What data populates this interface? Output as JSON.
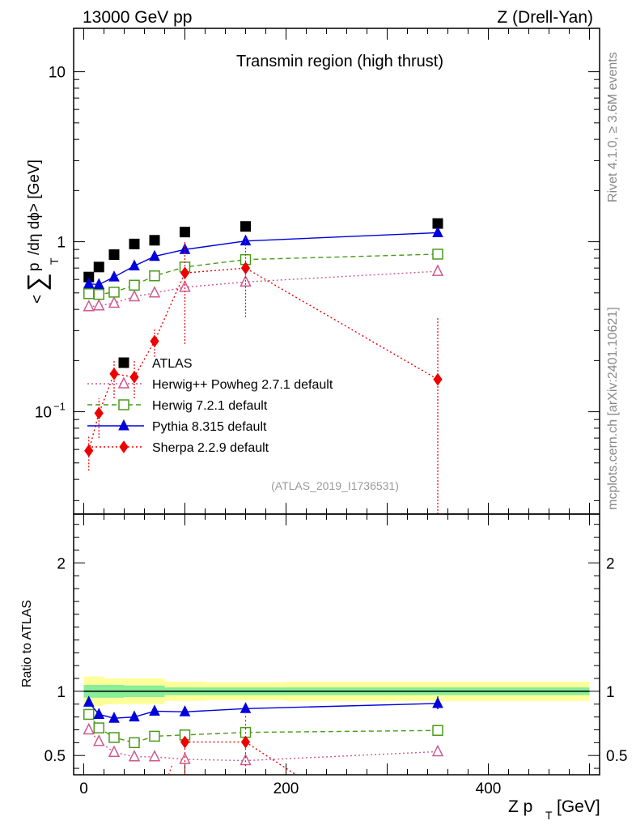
{
  "header": {
    "left": "13000 GeV pp",
    "right": "Z (Drell-Yan)",
    "title": "Transmin region (high thrust)",
    "side_rivet": "Rivet 4.1.0, ≥ 3.6M events",
    "side_mcplots": "mcplots.cern.ch [arXiv:2401.10621]",
    "analysis": "(ATLAS_2019_I1736531)"
  },
  "chart_data": [
    {
      "type": "scatter",
      "panel": "main",
      "ylabel": {
        "lt": "<",
        "sum": "∑",
        "p": "p",
        "sub": "T",
        "rest": "/dη dϕ> [GeV]"
      },
      "yscale": "log",
      "ylim": [
        0.025,
        18
      ],
      "xlim": [
        -10,
        510
      ],
      "yticks": [
        {
          "v": 10,
          "label": "10",
          "sup": ""
        },
        {
          "v": 1,
          "label": "1",
          "sup": ""
        },
        {
          "v": 0.1,
          "label": "10",
          "sup": "−1"
        }
      ],
      "legend": [
        {
          "label": "ATLAS",
          "series": "ATLAS"
        },
        {
          "label": "Herwig++ Powheg 2.7.1 default",
          "series": "Herwig++"
        },
        {
          "label": "Herwig 7.2.1 default",
          "series": "Herwig7"
        },
        {
          "label": "Pythia 8.315 default",
          "series": "Pythia"
        },
        {
          "label": "Sherpa 2.2.9 default",
          "series": "Sherpa"
        }
      ],
      "series": [
        {
          "name": "ATLAS",
          "color": "#000000",
          "marker": "square-filled",
          "line": "none",
          "x": [
            5,
            15,
            30,
            50,
            70,
            100,
            160,
            350
          ],
          "y": [
            0.62,
            0.71,
            0.84,
            0.97,
            1.02,
            1.14,
            1.23,
            1.28
          ]
        },
        {
          "name": "Herwig++",
          "color": "#cc5a8f",
          "marker": "triangle-open",
          "line": "dotted",
          "x": [
            5,
            15,
            30,
            50,
            70,
            100,
            160,
            350
          ],
          "y": [
            0.415,
            0.42,
            0.435,
            0.475,
            0.5,
            0.54,
            0.58,
            0.67
          ]
        },
        {
          "name": "Herwig7",
          "color": "#4a9a1a",
          "marker": "square-open",
          "line": "dashed",
          "x": [
            5,
            15,
            30,
            50,
            70,
            100,
            160,
            350
          ],
          "y": [
            0.495,
            0.49,
            0.505,
            0.555,
            0.63,
            0.71,
            0.785,
            0.845
          ]
        },
        {
          "name": "Pythia",
          "color": "#0000dd",
          "marker": "triangle-filled",
          "line": "solid",
          "x": [
            5,
            15,
            30,
            50,
            70,
            100,
            160,
            350
          ],
          "y": [
            0.565,
            0.56,
            0.62,
            0.72,
            0.82,
            0.9,
            1.01,
            1.13
          ]
        },
        {
          "name": "Sherpa",
          "color": "#ee0000",
          "marker": "diamond-filled",
          "line": "dotted",
          "x": [
            5,
            15,
            30,
            50,
            70,
            100,
            160,
            350
          ],
          "y": [
            0.059,
            0.098,
            0.167,
            0.16,
            0.26,
            0.655,
            0.7,
            0.155
          ],
          "err": [
            [
              0.045,
              0.072
            ],
            [
              0.07,
              0.12
            ],
            [
              0.12,
              0.2
            ],
            [
              0.12,
              0.2
            ],
            [
              0.21,
              0.31
            ],
            [
              0.25,
              1.0
            ],
            [
              0.36,
              1.05
            ],
            [
              0.025,
              0.36
            ]
          ]
        }
      ]
    },
    {
      "type": "scatter",
      "panel": "ratio",
      "ylabel": "Ratio to ATLAS",
      "xlabel": {
        "main": "Z p",
        "sub": "T",
        "unit": "[GeV]"
      },
      "ylim": [
        0.35,
        2.38
      ],
      "xlim": [
        -10,
        510
      ],
      "xticks": [
        {
          "v": 0,
          "label": "0"
        },
        {
          "v": 200,
          "label": "200"
        },
        {
          "v": 400,
          "label": "400"
        }
      ],
      "yticks": [
        {
          "v": 0.5,
          "label": "0.5"
        },
        {
          "v": 1,
          "label": "1"
        },
        {
          "v": 2,
          "label": "2"
        }
      ],
      "bands": [
        {
          "x": [
            0,
            20,
            40,
            60,
            80,
            120,
            200,
            500
          ],
          "yellow": [
            0.115,
            0.1,
            0.1,
            0.1,
            0.075,
            0.07,
            0.075
          ],
          "green": [
            0.05,
            0.05,
            0.045,
            0.045,
            0.03,
            0.03,
            0.03
          ]
        }
      ],
      "series": [
        {
          "name": "Herwig++",
          "color": "#cc5a8f",
          "marker": "triangle-open",
          "line": "dotted",
          "x": [
            5,
            15,
            30,
            50,
            70,
            100,
            160,
            350
          ],
          "y": [
            0.7,
            0.61,
            0.525,
            0.49,
            0.49,
            0.47,
            0.46,
            0.53
          ]
        },
        {
          "name": "Herwig7",
          "color": "#4a9a1a",
          "marker": "square-open",
          "line": "dashed",
          "x": [
            5,
            15,
            30,
            50,
            70,
            100,
            160,
            350
          ],
          "y": [
            0.82,
            0.715,
            0.64,
            0.6,
            0.65,
            0.66,
            0.68,
            0.695
          ]
        },
        {
          "name": "Pythia",
          "color": "#0000dd",
          "marker": "triangle-filled",
          "line": "solid",
          "x": [
            5,
            15,
            30,
            50,
            70,
            100,
            160,
            350
          ],
          "y": [
            0.915,
            0.82,
            0.79,
            0.8,
            0.845,
            0.84,
            0.865,
            0.905
          ]
        },
        {
          "name": "Sherpa",
          "color": "#ee0000",
          "marker": "diamond-filled",
          "line": "dotted",
          "x": [
            100,
            160,
            200,
            210
          ],
          "y": [
            0.605,
            0.605,
            0.4,
            0.35
          ],
          "markers": [
            true,
            true,
            false,
            false
          ]
        }
      ]
    }
  ]
}
